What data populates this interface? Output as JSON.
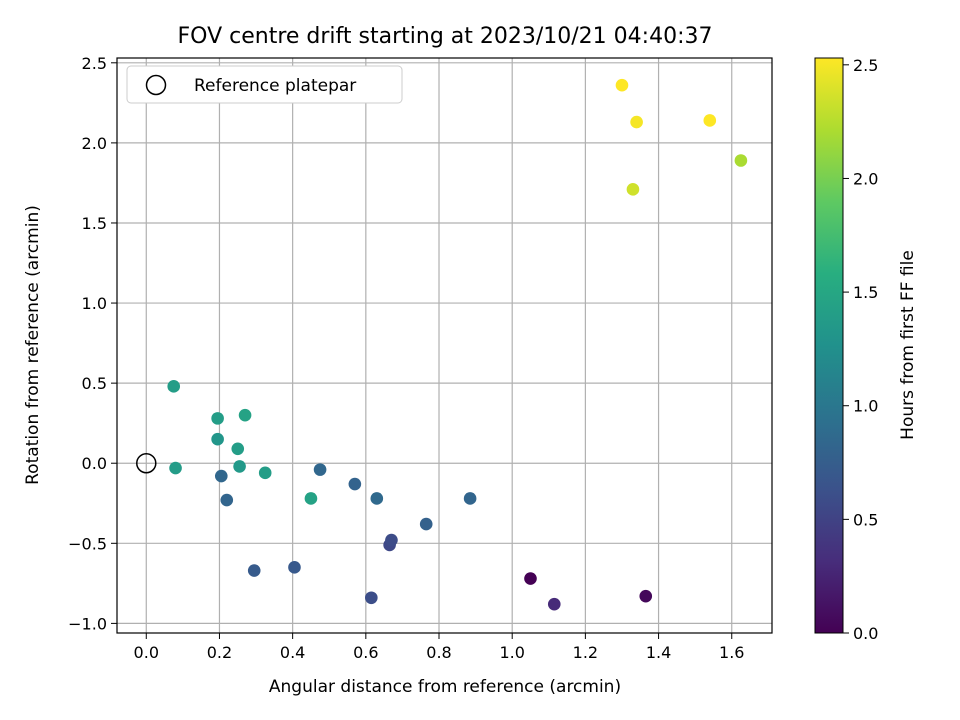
{
  "chart_data": {
    "type": "scatter",
    "title": "FOV centre drift starting at 2023/10/21 04:40:37",
    "xlabel": "Angular distance from reference (arcmin)",
    "ylabel": "Rotation from reference (arcmin)",
    "colorbar_label": "Hours from first FF file",
    "xlim": [
      -0.08,
      1.71
    ],
    "ylim": [
      -1.06,
      2.53
    ],
    "clim": [
      0.0,
      2.53
    ],
    "colormap": "viridis",
    "x_ticks": [
      "0.0",
      "0.2",
      "0.4",
      "0.6",
      "0.8",
      "1.0",
      "1.2",
      "1.4",
      "1.6"
    ],
    "y_ticks": [
      "−1.0",
      "−0.5",
      "0.0",
      "0.5",
      "1.0",
      "1.5",
      "2.0",
      "2.5"
    ],
    "colorbar_ticks": [
      "0.0",
      "0.5",
      "1.0",
      "1.5",
      "2.0",
      "2.5"
    ],
    "grid": true,
    "legend_position": "top-left",
    "reference": {
      "label": "Reference platepar",
      "x": 0.0,
      "y": 0.0
    },
    "points": [
      {
        "x": 1.05,
        "y": -0.72,
        "t": 0.0
      },
      {
        "x": 1.365,
        "y": -0.83,
        "t": 0.05
      },
      {
        "x": 1.115,
        "y": -0.88,
        "t": 0.3
      },
      {
        "x": 0.665,
        "y": -0.51,
        "t": 0.55
      },
      {
        "x": 0.67,
        "y": -0.48,
        "t": 0.58
      },
      {
        "x": 0.615,
        "y": -0.84,
        "t": 0.6
      },
      {
        "x": 0.405,
        "y": -0.65,
        "t": 0.7
      },
      {
        "x": 0.295,
        "y": -0.67,
        "t": 0.72
      },
      {
        "x": 0.765,
        "y": -0.38,
        "t": 0.78
      },
      {
        "x": 0.885,
        "y": -0.22,
        "t": 0.82
      },
      {
        "x": 0.63,
        "y": -0.22,
        "t": 0.86
      },
      {
        "x": 0.57,
        "y": -0.13,
        "t": 0.8
      },
      {
        "x": 0.475,
        "y": -0.04,
        "t": 0.84
      },
      {
        "x": 0.22,
        "y": -0.23,
        "t": 0.82
      },
      {
        "x": 0.205,
        "y": -0.08,
        "t": 0.84
      },
      {
        "x": 0.255,
        "y": -0.02,
        "t": 1.35
      },
      {
        "x": 0.325,
        "y": -0.06,
        "t": 1.4
      },
      {
        "x": 0.45,
        "y": -0.22,
        "t": 1.45
      },
      {
        "x": 0.08,
        "y": -0.03,
        "t": 1.38
      },
      {
        "x": 0.25,
        "y": 0.09,
        "t": 1.4
      },
      {
        "x": 0.195,
        "y": 0.15,
        "t": 1.32
      },
      {
        "x": 0.195,
        "y": 0.28,
        "t": 1.4
      },
      {
        "x": 0.27,
        "y": 0.3,
        "t": 1.45
      },
      {
        "x": 0.075,
        "y": 0.48,
        "t": 1.4
      },
      {
        "x": 1.33,
        "y": 1.71,
        "t": 2.35
      },
      {
        "x": 1.625,
        "y": 1.89,
        "t": 2.2
      },
      {
        "x": 1.3,
        "y": 2.36,
        "t": 2.53
      },
      {
        "x": 1.34,
        "y": 2.13,
        "t": 2.5
      },
      {
        "x": 1.54,
        "y": 2.14,
        "t": 2.53
      }
    ]
  }
}
